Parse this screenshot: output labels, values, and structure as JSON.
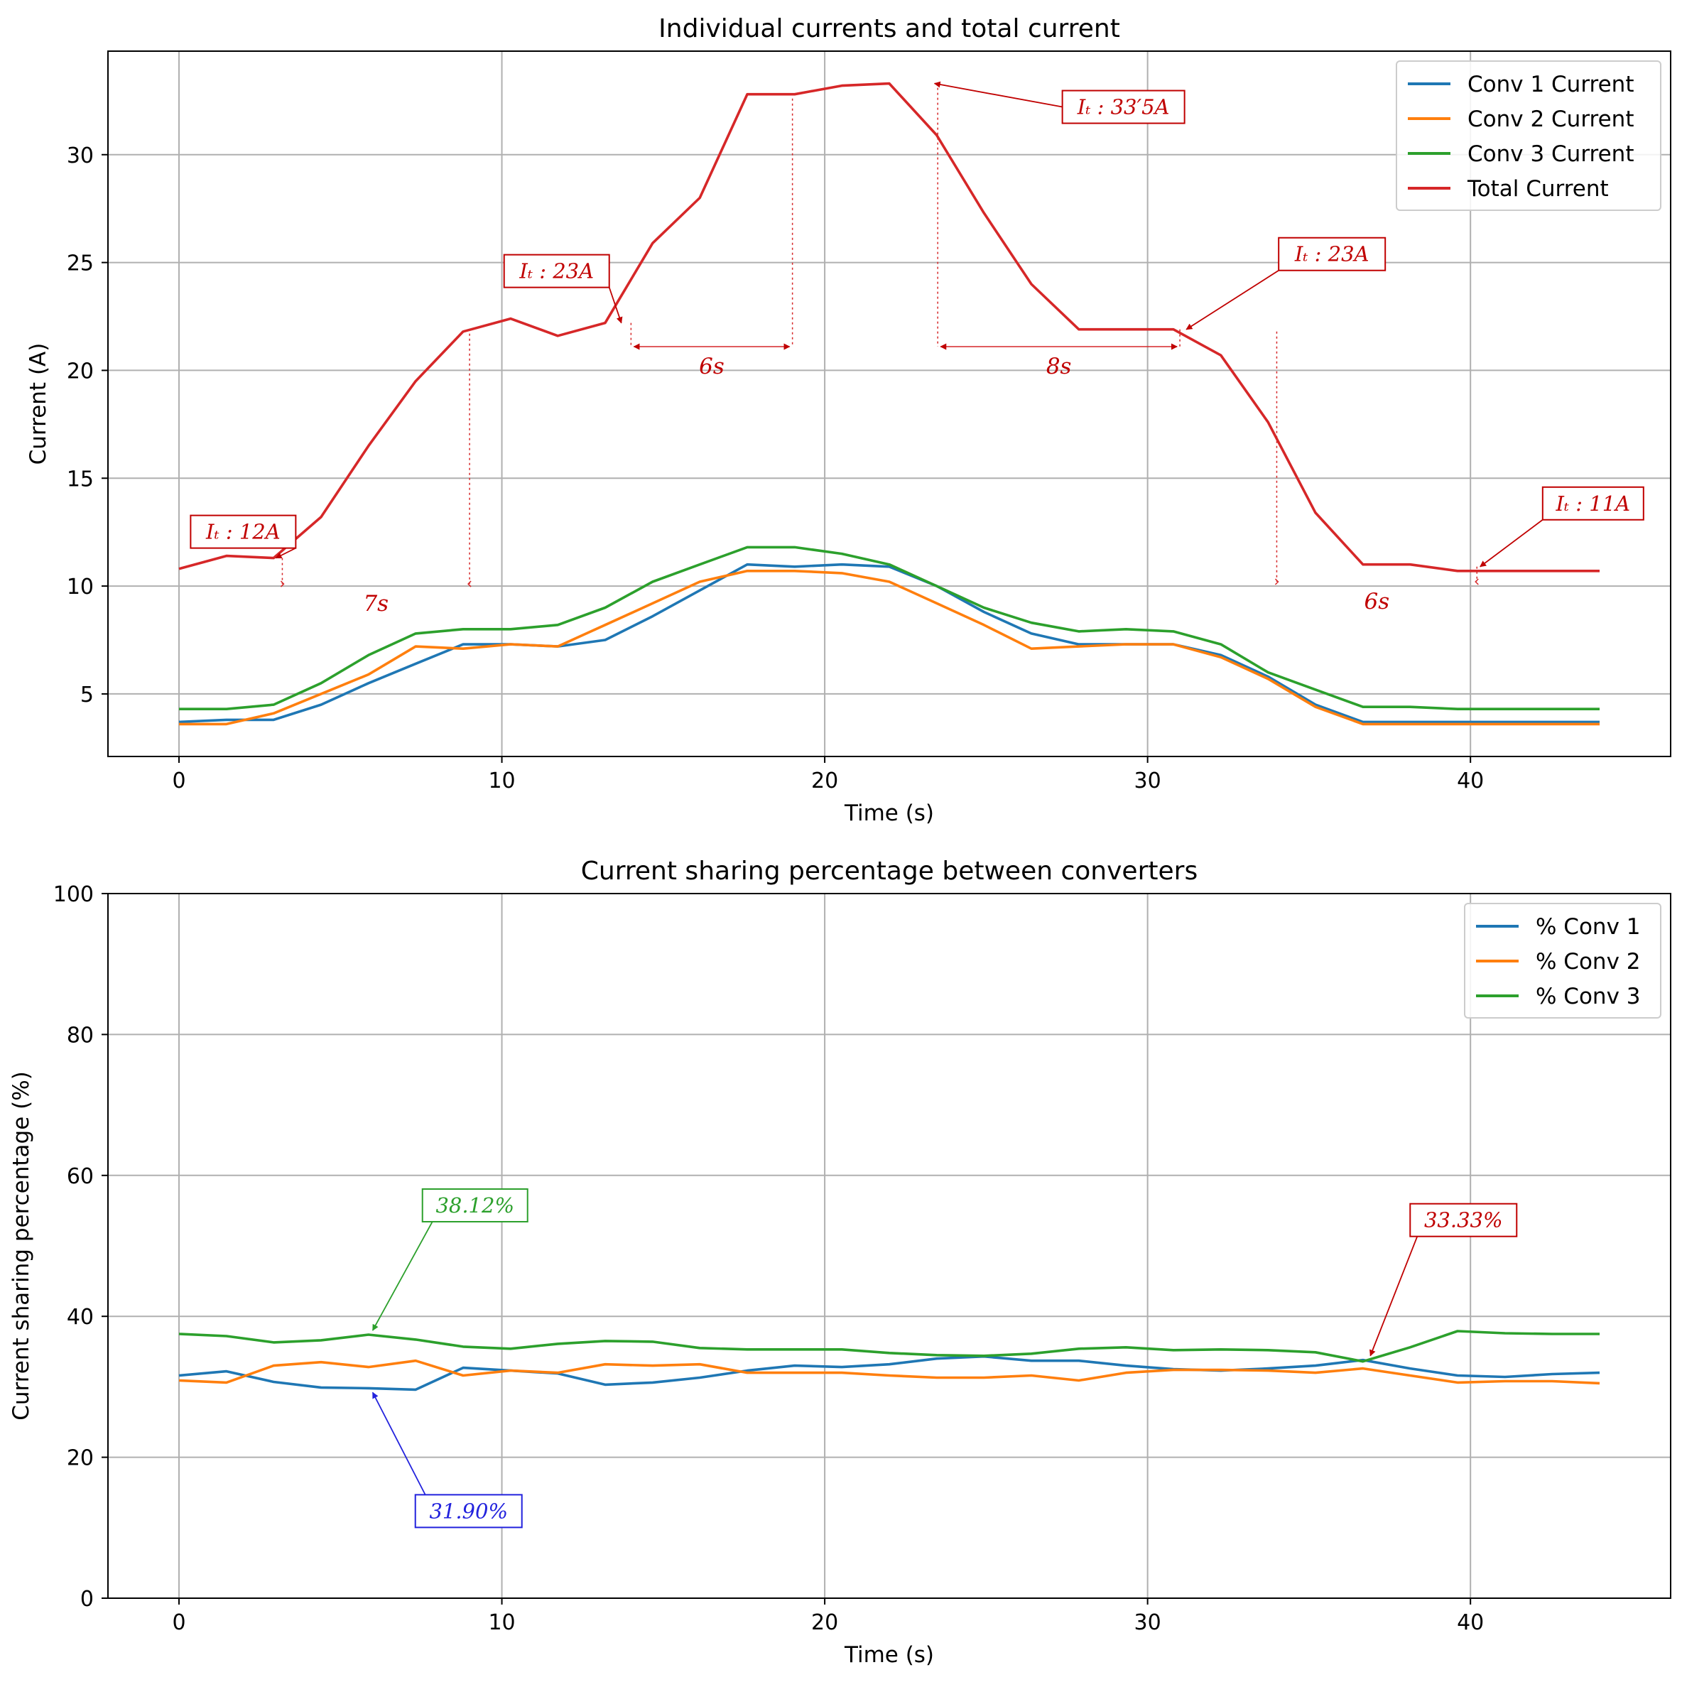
{
  "chart_data": [
    {
      "type": "line",
      "title": "Individual currents and total current",
      "xlabel": "Time (s)",
      "ylabel": "Current (A)",
      "xlim": [
        -2.2,
        46.2
      ],
      "ylim": [
        2.1,
        34.8
      ],
      "xticks": [
        0,
        10,
        20,
        30,
        40
      ],
      "yticks": [
        5,
        10,
        15,
        20,
        25,
        30
      ],
      "xtick_labels": [
        "0",
        "10",
        "20",
        "30",
        "40"
      ],
      "ytick_labels": [
        "5",
        "10",
        "15",
        "20",
        "25",
        "30"
      ],
      "grid": true,
      "legend_position": "top-right",
      "x": [
        0,
        1.47,
        2.93,
        4.4,
        5.87,
        7.33,
        8.8,
        10.27,
        11.73,
        13.2,
        14.67,
        16.13,
        17.6,
        19.07,
        20.53,
        22.0,
        23.47,
        24.93,
        26.4,
        27.87,
        29.33,
        30.8,
        32.27,
        33.73,
        35.2,
        36.67,
        38.13,
        39.6,
        41.07,
        42.53,
        44.0
      ],
      "series": [
        {
          "name": "Conv 1 Current",
          "color": "#1f77b4",
          "values": [
            3.7,
            3.8,
            3.8,
            4.5,
            5.5,
            6.4,
            7.3,
            7.3,
            7.2,
            7.5,
            8.6,
            9.8,
            11.0,
            10.9,
            11.0,
            10.9,
            10.0,
            8.8,
            7.8,
            7.3,
            7.3,
            7.3,
            6.8,
            5.8,
            4.5,
            3.7,
            3.7,
            3.7,
            3.7,
            3.7,
            3.7
          ]
        },
        {
          "name": "Conv 2 Current",
          "color": "#ff7f0e",
          "values": [
            3.6,
            3.6,
            4.1,
            5.0,
            5.9,
            7.2,
            7.1,
            7.3,
            7.2,
            8.2,
            9.2,
            10.2,
            10.7,
            10.7,
            10.6,
            10.2,
            9.2,
            8.2,
            7.1,
            7.2,
            7.3,
            7.3,
            6.7,
            5.7,
            4.4,
            3.6,
            3.6,
            3.6,
            3.6,
            3.6,
            3.6
          ]
        },
        {
          "name": "Conv 3 Current",
          "color": "#2ca02c",
          "values": [
            4.3,
            4.3,
            4.5,
            5.5,
            6.8,
            7.8,
            8.0,
            8.0,
            8.2,
            9.0,
            10.2,
            11.0,
            11.8,
            11.8,
            11.5,
            11.0,
            10.0,
            9.0,
            8.3,
            7.9,
            8.0,
            7.9,
            7.3,
            6.0,
            5.2,
            4.4,
            4.4,
            4.3,
            4.3,
            4.3,
            4.3
          ]
        },
        {
          "name": "Total Current",
          "color": "#d62728",
          "values": [
            10.8,
            11.4,
            11.3,
            13.2,
            16.5,
            19.5,
            21.8,
            22.4,
            21.6,
            22.2,
            25.9,
            28.0,
            32.8,
            32.8,
            33.2,
            33.3,
            30.9,
            27.3,
            24.0,
            21.9,
            21.9,
            21.9,
            20.7,
            17.6,
            13.4,
            11.0,
            11.0,
            10.7,
            10.7,
            10.7,
            10.7
          ]
        }
      ],
      "annotations": [
        {
          "text": "I_t : 12A",
          "display": "𝐼ₜ : 12𝐴",
          "x": 3.0,
          "y": 11.3,
          "color": "#c00000"
        },
        {
          "text": "I_t : 23A",
          "display": "𝐼ₜ : 23𝐴",
          "x": 13.7,
          "y": 22.2,
          "color": "#c00000"
        },
        {
          "text": "I_t : 33'5A",
          "display": "𝐼ₜ : 33′5𝐴",
          "x": 23.4,
          "y": 33.3,
          "color": "#c00000"
        },
        {
          "text": "I_t : 23A",
          "display": "𝐼ₜ : 23𝐴",
          "x": 31.2,
          "y": 21.9,
          "color": "#c00000"
        },
        {
          "text": "I_t : 11A",
          "display": "𝐼ₜ : 11𝐴",
          "x": 40.3,
          "y": 10.9,
          "color": "#c00000"
        }
      ],
      "intervals": [
        {
          "label": "7s",
          "display": "7𝑠",
          "x_start": 3.2,
          "x_end": 9.0
        },
        {
          "label": "6s",
          "display": "6𝑠",
          "x_start": 14.0,
          "x_end": 19.0
        },
        {
          "label": "8s",
          "display": "8𝑠",
          "x_start": 23.5,
          "x_end": 31.0
        },
        {
          "label": "6s",
          "display": "6𝑠",
          "x_start": 34.0,
          "x_end": 40.2
        }
      ]
    },
    {
      "type": "line",
      "title": "Current sharing percentage between converters",
      "xlabel": "Time (s)",
      "ylabel": "Current sharing percentage (%)",
      "xlim": [
        -2.2,
        46.2
      ],
      "ylim": [
        0,
        100
      ],
      "xticks": [
        0,
        10,
        20,
        30,
        40
      ],
      "yticks": [
        0,
        20,
        40,
        60,
        80,
        100
      ],
      "xtick_labels": [
        "0",
        "10",
        "20",
        "30",
        "40"
      ],
      "ytick_labels": [
        "0",
        "20",
        "40",
        "60",
        "80",
        "100"
      ],
      "grid": true,
      "legend_position": "top-right",
      "x": [
        0,
        1.47,
        2.93,
        4.4,
        5.87,
        7.33,
        8.8,
        10.27,
        11.73,
        13.2,
        14.67,
        16.13,
        17.6,
        19.07,
        20.53,
        22.0,
        23.47,
        24.93,
        26.4,
        27.87,
        29.33,
        30.8,
        32.27,
        33.73,
        35.2,
        36.67,
        38.13,
        39.6,
        41.07,
        42.53,
        44.0
      ],
      "series": [
        {
          "name": "% Conv 1",
          "color": "#1f77b4",
          "values": [
            31.6,
            32.2,
            30.7,
            29.9,
            29.8,
            29.6,
            32.7,
            32.3,
            31.9,
            30.3,
            30.6,
            31.3,
            32.3,
            33.0,
            32.8,
            33.2,
            34.0,
            34.3,
            33.7,
            33.7,
            33.0,
            32.5,
            32.3,
            32.6,
            33.0,
            33.8,
            32.6,
            31.6,
            31.4,
            31.8,
            32.0
          ]
        },
        {
          "name": "% Conv 2",
          "color": "#ff7f0e",
          "values": [
            30.9,
            30.6,
            33.0,
            33.5,
            32.8,
            33.7,
            31.6,
            32.3,
            32.0,
            33.2,
            33.0,
            33.2,
            32.0,
            32.0,
            32.0,
            31.6,
            31.3,
            31.3,
            31.6,
            30.9,
            32.0,
            32.4,
            32.4,
            32.3,
            32.0,
            32.6,
            31.6,
            30.6,
            30.8,
            30.8,
            30.5
          ]
        },
        {
          "name": "% Conv 3",
          "color": "#2ca02c",
          "values": [
            37.5,
            37.2,
            36.3,
            36.6,
            37.4,
            36.7,
            35.7,
            35.4,
            36.1,
            36.5,
            36.4,
            35.5,
            35.3,
            35.3,
            35.3,
            34.8,
            34.5,
            34.4,
            34.7,
            35.4,
            35.6,
            35.2,
            35.3,
            35.2,
            34.9,
            33.6,
            35.6,
            37.9,
            37.6,
            37.5,
            37.5
          ]
        }
      ],
      "annotations": [
        {
          "text": "38.12%",
          "x": 6.0,
          "y": 37.4,
          "color": "#2ca02c"
        },
        {
          "text": "31.90%",
          "x": 6.0,
          "y": 29.8,
          "color": "#2222dd"
        },
        {
          "text": "33.33%",
          "x": 36.9,
          "y": 33.8,
          "color": "#c00000"
        }
      ]
    }
  ]
}
